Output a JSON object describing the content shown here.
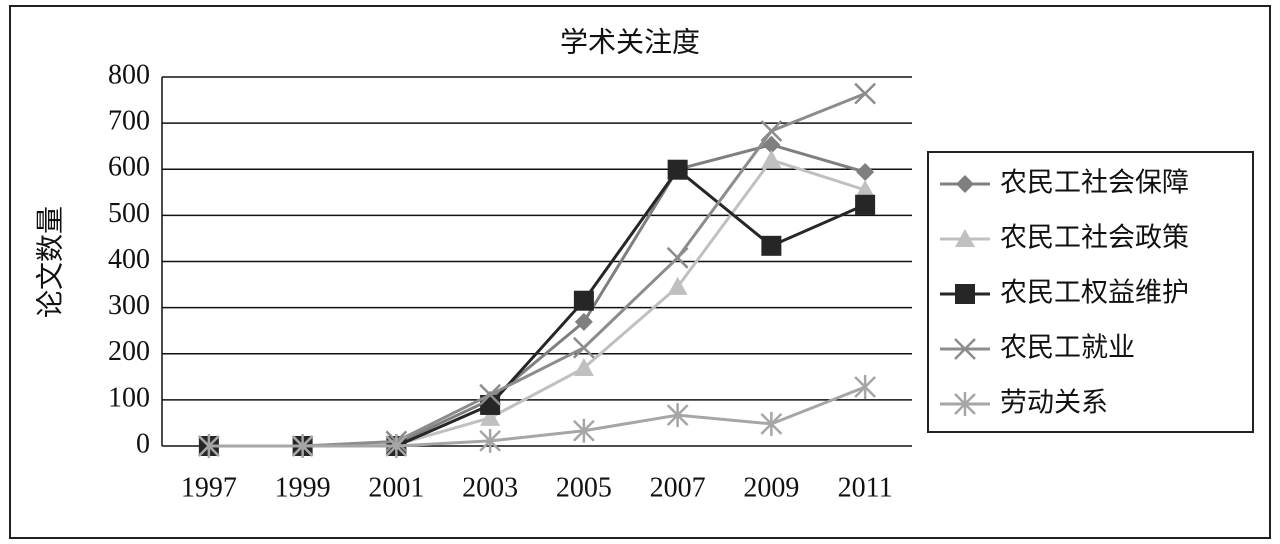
{
  "chart_data": {
    "type": "line",
    "title": "学术关注度",
    "y_label": "论文数量",
    "categories": [
      "1997",
      "1999",
      "2001",
      "2003",
      "2005",
      "2007",
      "2009",
      "2011"
    ],
    "ylim": [
      0,
      800
    ],
    "yticks": [
      0,
      100,
      200,
      300,
      400,
      500,
      600,
      700,
      800
    ],
    "grid": true,
    "legend": "right",
    "series": [
      {
        "name": "农民工社会保障",
        "color": "#7f7f7f",
        "marker": "diamond",
        "values": [
          0,
          0,
          5,
          100,
          269,
          600,
          653,
          594
        ]
      },
      {
        "name": "农民工社会政策",
        "color": "#c0c0c0",
        "marker": "triangle",
        "values": [
          0,
          0,
          3,
          61,
          169,
          345,
          620,
          555
        ]
      },
      {
        "name": "农民工权益维护",
        "color": "#262626",
        "marker": "square",
        "values": [
          0,
          0,
          0,
          89,
          315,
          599,
          434,
          523
        ]
      },
      {
        "name": "农民工就业",
        "color": "#8c8c8c",
        "marker": "x",
        "values": [
          0,
          0,
          10,
          111,
          213,
          408,
          683,
          764
        ]
      },
      {
        "name": "劳动关系",
        "color": "#a6a6a6",
        "marker": "star",
        "values": [
          0,
          0,
          0,
          11,
          33,
          67,
          48,
          128
        ]
      }
    ]
  }
}
